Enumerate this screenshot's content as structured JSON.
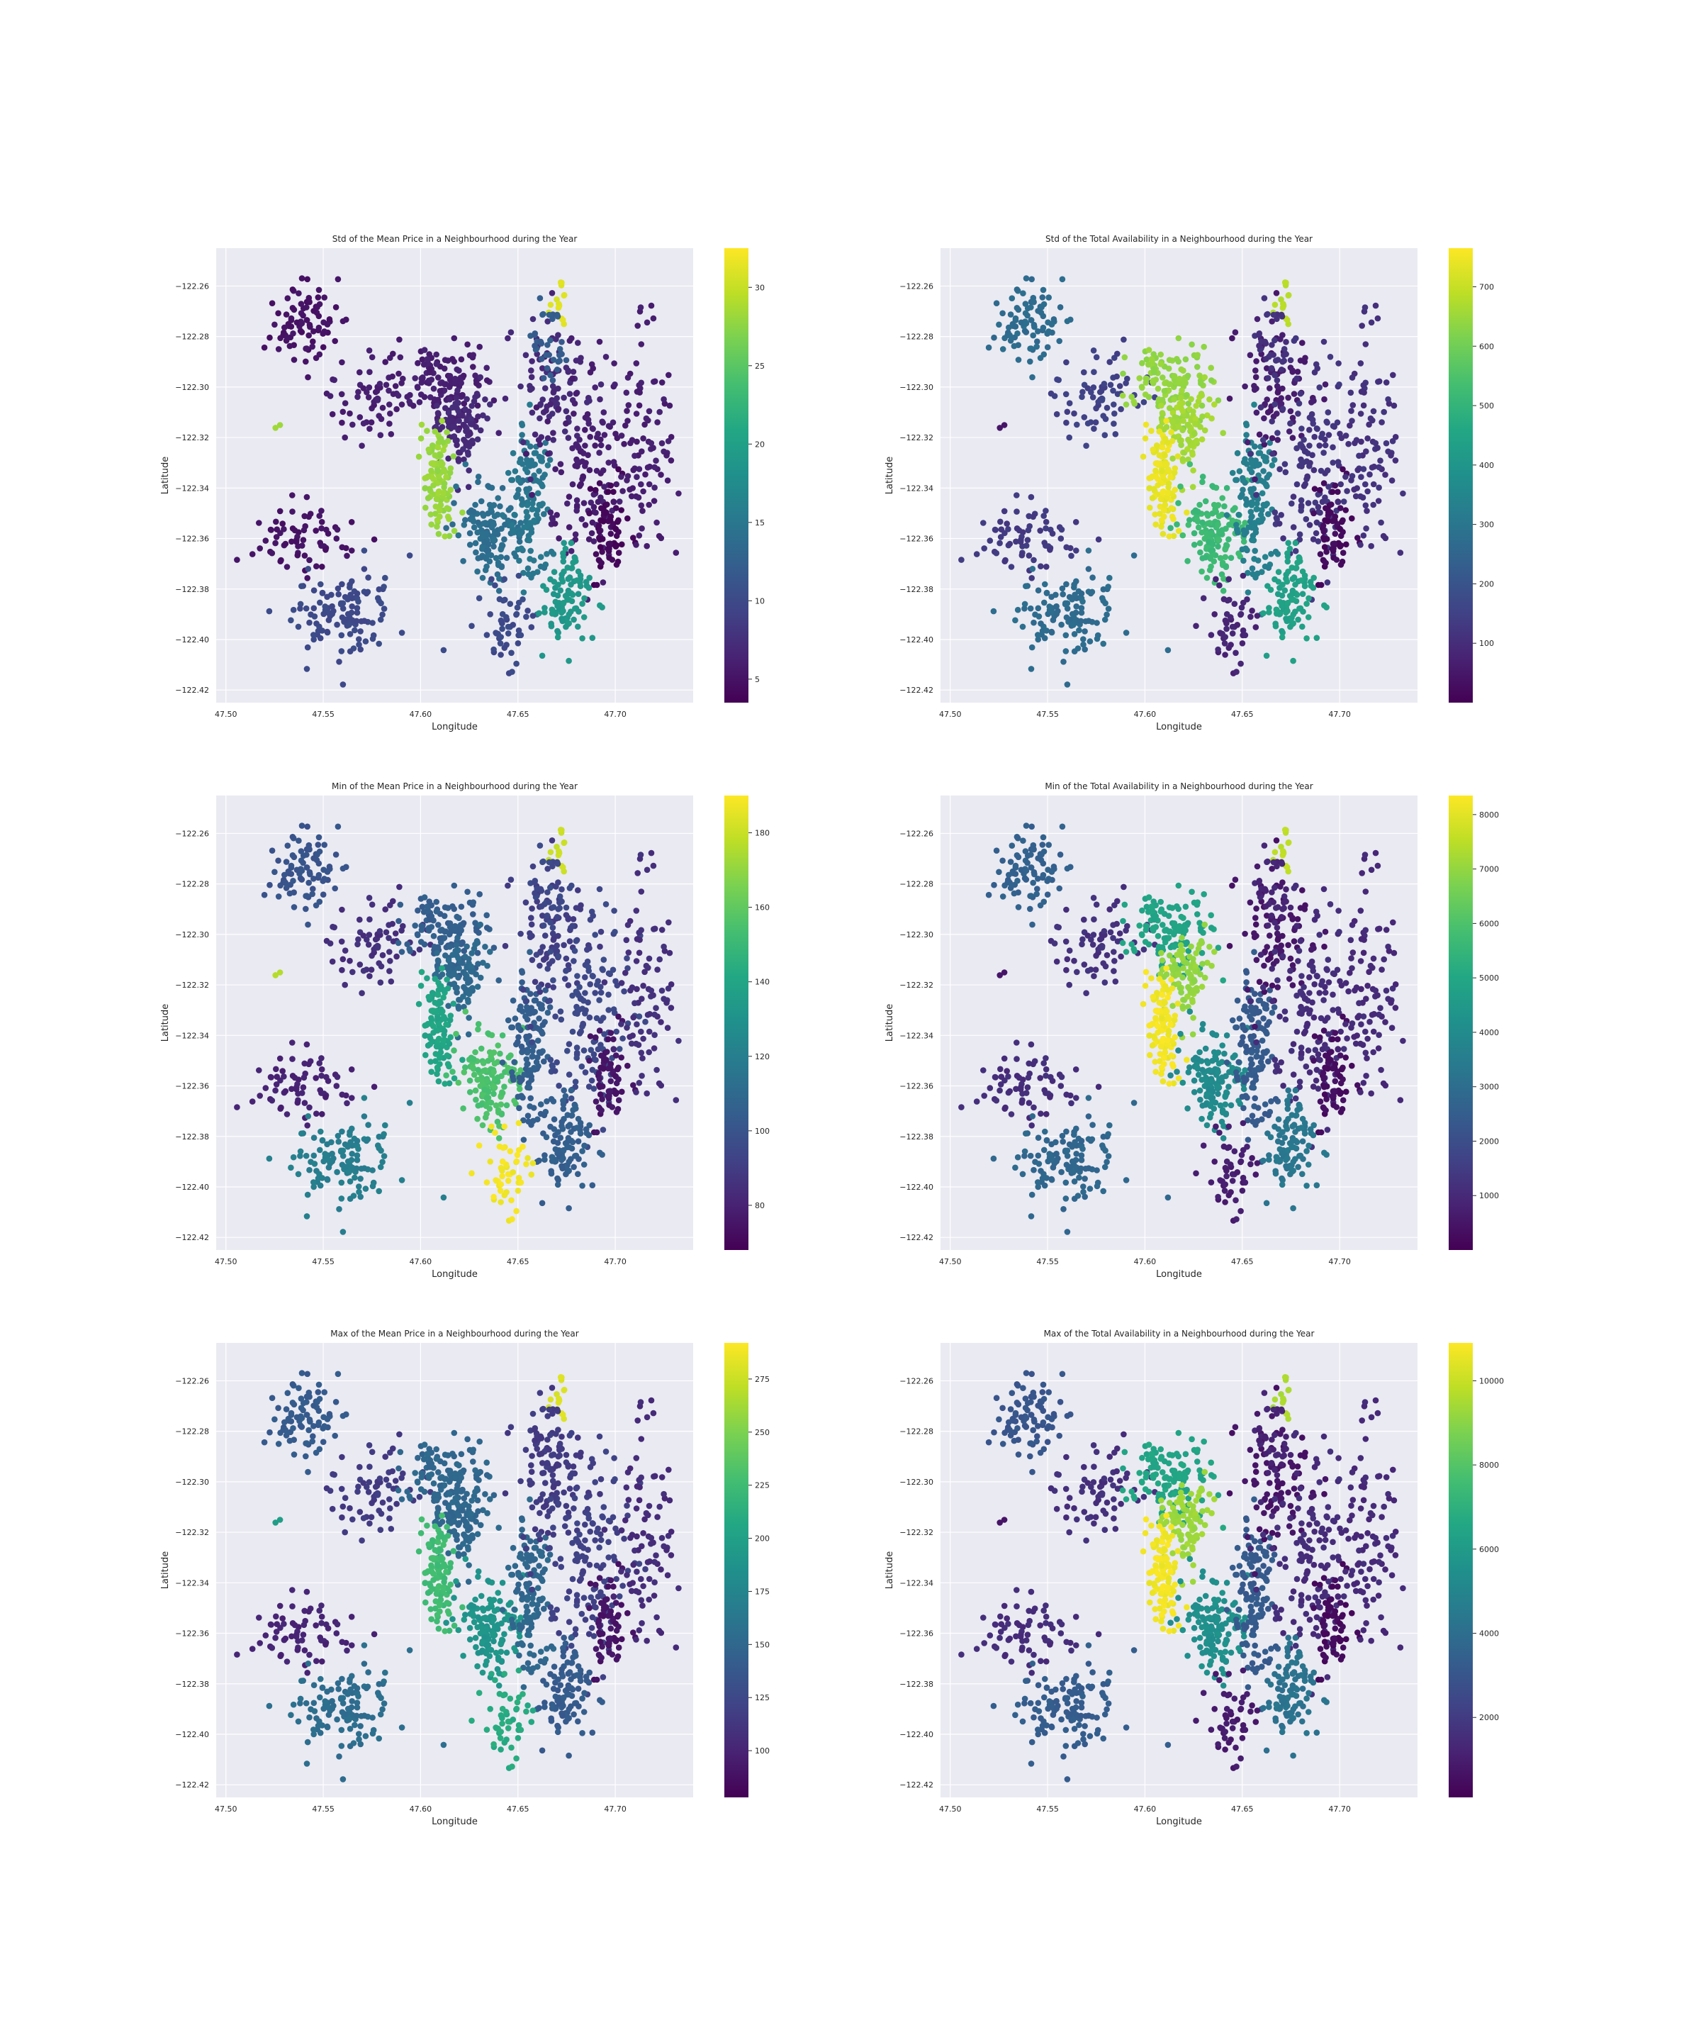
{
  "figure": {
    "background": "#ffffff",
    "axes_face": "#eaeaf2",
    "grid_color": "#ffffff",
    "colormap": "viridis"
  },
  "chart_data": [
    {
      "type": "scatter",
      "title": "Std of the Mean Price in a Neighbourhood during the Year",
      "xlabel": "Longitude",
      "ylabel": "Latitude",
      "xlim": [
        47.495,
        47.74
      ],
      "ylim": [
        -122.425,
        -122.245
      ],
      "y_inverted": true,
      "xticks": [
        "47.50",
        "47.55",
        "47.60",
        "47.65",
        "47.70"
      ],
      "yticks": [
        "−122.26",
        "−122.28",
        "−122.30",
        "−122.32",
        "−122.34",
        "−122.36",
        "−122.38",
        "−122.40",
        "−122.42"
      ],
      "grid": true,
      "colorbar": {
        "min": 3.5,
        "max": 32.5,
        "ticks": [
          "5",
          "10",
          "15",
          "20",
          "25",
          "30"
        ]
      },
      "metric": "price",
      "region_values": {
        "northwest": 5,
        "west_inner": 6,
        "north_central": 6,
        "central_upper": 7,
        "queen_anne_west": 28,
        "downtown": 14,
        "capitol": 15,
        "east_north": 7,
        "east_middle": 6,
        "east_deep": 4,
        "east_south": 19,
        "far_east": 6,
        "north_yellow": 31,
        "north_strip": 12,
        "south_pockets": 10,
        "southwest_upper": 5,
        "southwest_lower": 10,
        "west_stray": 28
      }
    },
    {
      "type": "scatter",
      "title": "Std of the Total Availability in a Neighbourhood during the Year",
      "xlabel": "Longitude",
      "ylabel": "Latitude",
      "xlim": [
        47.495,
        47.74
      ],
      "ylim": [
        -122.425,
        -122.245
      ],
      "y_inverted": true,
      "xticks": [
        "47.50",
        "47.55",
        "47.60",
        "47.65",
        "47.70"
      ],
      "yticks": [
        "−122.26",
        "−122.28",
        "−122.30",
        "−122.32",
        "−122.34",
        "−122.36",
        "−122.38",
        "−122.40",
        "−122.42"
      ],
      "grid": true,
      "colorbar": {
        "min": 0,
        "max": 765,
        "ticks": [
          "100",
          "200",
          "300",
          "400",
          "500",
          "600",
          "700"
        ]
      },
      "metric": "availability",
      "region_values": {
        "northwest": 270,
        "west_inner": 150,
        "north_central": 640,
        "central_upper": 660,
        "queen_anne_west": 740,
        "downtown": 520,
        "capitol": 330,
        "east_north": 60,
        "east_middle": 120,
        "east_deep": 20,
        "east_south": 440,
        "far_east": 110,
        "north_yellow": 680,
        "north_strip": 110,
        "south_pockets": 80,
        "southwest_upper": 130,
        "southwest_lower": 270,
        "west_stray": 40
      }
    },
    {
      "type": "scatter",
      "title": "Min of the Mean Price in a Neighbourhood during the Year",
      "xlabel": "Longitude",
      "ylabel": "Latitude",
      "xlim": [
        47.495,
        47.74
      ],
      "ylim": [
        -122.425,
        -122.245
      ],
      "y_inverted": true,
      "xticks": [
        "47.50",
        "47.55",
        "47.60",
        "47.65",
        "47.70"
      ],
      "yticks": [
        "−122.26",
        "−122.28",
        "−122.30",
        "−122.32",
        "−122.34",
        "−122.36",
        "−122.38",
        "−122.40",
        "−122.42"
      ],
      "grid": true,
      "colorbar": {
        "min": 68,
        "max": 190,
        "ticks": [
          "80",
          "100",
          "120",
          "140",
          "160",
          "180"
        ]
      },
      "metric": "price",
      "region_values": {
        "northwest": 100,
        "west_inner": 85,
        "north_central": 105,
        "central_upper": 110,
        "queen_anne_west": 140,
        "downtown": 155,
        "capitol": 105,
        "east_north": 90,
        "east_middle": 95,
        "east_deep": 75,
        "east_south": 105,
        "far_east": 85,
        "north_yellow": 180,
        "north_strip": 95,
        "south_pockets": 188,
        "southwest_upper": 80,
        "southwest_lower": 120,
        "west_stray": 175
      }
    },
    {
      "type": "scatter",
      "title": "Min of the Total Availability in a Neighbourhood during the Year",
      "xlabel": "Longitude",
      "ylabel": "Latitude",
      "xlim": [
        47.495,
        47.74
      ],
      "ylim": [
        -122.425,
        -122.245
      ],
      "y_inverted": true,
      "xticks": [
        "47.50",
        "47.55",
        "47.60",
        "47.65",
        "47.70"
      ],
      "yticks": [
        "−122.26",
        "−122.28",
        "−122.30",
        "−122.32",
        "−122.34",
        "−122.36",
        "−122.38",
        "−122.40",
        "−122.42"
      ],
      "grid": true,
      "colorbar": {
        "min": 0,
        "max": 8350,
        "ticks": [
          "1000",
          "2000",
          "3000",
          "4000",
          "5000",
          "6000",
          "7000",
          "8000"
        ]
      },
      "metric": "availability",
      "region_values": {
        "northwest": 2600,
        "west_inner": 1200,
        "north_central": 4900,
        "central_upper": 7000,
        "queen_anne_west": 8200,
        "downtown": 4000,
        "capitol": 2400,
        "east_north": 500,
        "east_middle": 1100,
        "east_deep": 300,
        "east_south": 3300,
        "far_east": 1000,
        "north_yellow": 7500,
        "north_strip": 900,
        "south_pockets": 700,
        "southwest_upper": 1100,
        "southwest_lower": 2800,
        "west_stray": 400
      }
    },
    {
      "type": "scatter",
      "title": "Max of the Mean Price in a Neighbourhood during the Year",
      "xlabel": "Longitude",
      "ylabel": "Latitude",
      "xlim": [
        47.495,
        47.74
      ],
      "ylim": [
        -122.425,
        -122.245
      ],
      "y_inverted": true,
      "xticks": [
        "47.50",
        "47.55",
        "47.60",
        "47.65",
        "47.70"
      ],
      "yticks": [
        "−122.26",
        "−122.28",
        "−122.30",
        "−122.32",
        "−122.34",
        "−122.36",
        "−122.38",
        "−122.40",
        "−122.42"
      ],
      "grid": true,
      "colorbar": {
        "min": 78,
        "max": 292,
        "ticks": [
          "100",
          "125",
          "150",
          "175",
          "200",
          "225",
          "250",
          "275"
        ]
      },
      "metric": "price",
      "region_values": {
        "northwest": 140,
        "west_inner": 115,
        "north_central": 150,
        "central_upper": 150,
        "queen_anne_west": 225,
        "downtown": 190,
        "capitol": 150,
        "east_north": 115,
        "east_middle": 120,
        "east_deep": 90,
        "east_south": 140,
        "far_east": 105,
        "north_yellow": 280,
        "north_strip": 115,
        "south_pockets": 210,
        "southwest_upper": 100,
        "southwest_lower": 155,
        "west_stray": 195
      }
    },
    {
      "type": "scatter",
      "title": "Max of the Total Availability in a Neighbourhood during the Year",
      "xlabel": "Longitude",
      "ylabel": "Latitude",
      "xlim": [
        47.495,
        47.74
      ],
      "ylim": [
        -122.425,
        -122.245
      ],
      "y_inverted": true,
      "xticks": [
        "47.50",
        "47.55",
        "47.60",
        "47.65",
        "47.70"
      ],
      "yticks": [
        "−122.26",
        "−122.28",
        "−122.30",
        "−122.32",
        "−122.34",
        "−122.36",
        "−122.38",
        "−122.40",
        "−122.42"
      ],
      "grid": true,
      "colorbar": {
        "min": 100,
        "max": 10900,
        "ticks": [
          "2000",
          "4000",
          "6000",
          "8000",
          "10000"
        ]
      },
      "metric": "availability",
      "region_values": {
        "northwest": 3000,
        "west_inner": 1600,
        "north_central": 6500,
        "central_upper": 9300,
        "queen_anne_west": 10700,
        "downtown": 5500,
        "capitol": 3200,
        "east_north": 700,
        "east_middle": 1500,
        "east_deep": 400,
        "east_south": 4200,
        "far_east": 1400,
        "north_yellow": 9500,
        "north_strip": 1200,
        "south_pockets": 900,
        "southwest_upper": 1500,
        "southwest_lower": 3300,
        "west_stray": 600
      }
    }
  ],
  "listings": {
    "regions": [
      {
        "id": "northwest",
        "cx": 47.54,
        "cy": -122.275,
        "sx": 0.012,
        "sy": 0.009,
        "n": 90,
        "rot": 0.7
      },
      {
        "id": "west_inner",
        "cx": 47.575,
        "cy": -122.305,
        "sx": 0.012,
        "sy": 0.009,
        "n": 70,
        "rot": 0.4
      },
      {
        "id": "north_central",
        "cx": 47.613,
        "cy": -122.297,
        "sx": 0.01,
        "sy": 0.009,
        "n": 120,
        "rot": 0
      },
      {
        "id": "central_upper",
        "cx": 47.622,
        "cy": -122.315,
        "sx": 0.006,
        "sy": 0.009,
        "n": 90,
        "rot": 0
      },
      {
        "id": "queen_anne_west",
        "cx": 47.609,
        "cy": -122.336,
        "sx": 0.004,
        "sy": 0.011,
        "n": 110,
        "rot": 0.3
      },
      {
        "id": "downtown",
        "cx": 47.637,
        "cy": -122.357,
        "sx": 0.008,
        "sy": 0.009,
        "n": 140,
        "rot": 0
      },
      {
        "id": "capitol",
        "cx": 47.657,
        "cy": -122.348,
        "sx": 0.006,
        "sy": 0.014,
        "n": 130,
        "rot": 0
      },
      {
        "id": "east_north",
        "cx": 47.667,
        "cy": -122.3,
        "sx": 0.01,
        "sy": 0.014,
        "n": 90,
        "rot": 0
      },
      {
        "id": "east_middle",
        "cx": 47.685,
        "cy": -122.33,
        "sx": 0.012,
        "sy": 0.02,
        "n": 150,
        "rot": 0
      },
      {
        "id": "east_deep",
        "cx": 47.697,
        "cy": -122.355,
        "sx": 0.005,
        "sy": 0.01,
        "n": 70,
        "rot": 0
      },
      {
        "id": "east_south",
        "cx": 47.675,
        "cy": -122.385,
        "sx": 0.006,
        "sy": 0.009,
        "n": 100,
        "rot": 0
      },
      {
        "id": "far_east",
        "cx": 47.718,
        "cy": -122.32,
        "sx": 0.008,
        "sy": 0.025,
        "n": 90,
        "rot": 0
      },
      {
        "id": "north_yellow",
        "cx": 47.671,
        "cy": -122.268,
        "sx": 0.002,
        "sy": 0.004,
        "n": 16,
        "rot": 0
      },
      {
        "id": "north_strip",
        "cx": 47.665,
        "cy": -122.283,
        "sx": 0.004,
        "sy": 0.008,
        "n": 35,
        "rot": 0
      },
      {
        "id": "south_pockets",
        "cx": 47.645,
        "cy": -122.395,
        "sx": 0.007,
        "sy": 0.008,
        "n": 50,
        "rot": 0
      },
      {
        "id": "southwest_upper",
        "cx": 47.54,
        "cy": -122.36,
        "sx": 0.014,
        "sy": 0.007,
        "n": 70,
        "rot": 0
      },
      {
        "id": "southwest_lower",
        "cx": 47.56,
        "cy": -122.39,
        "sx": 0.016,
        "sy": 0.01,
        "n": 120,
        "rot": 0.2
      },
      {
        "id": "west_stray",
        "cx": 47.527,
        "cy": -122.316,
        "sx": 0.001,
        "sy": 0.001,
        "n": 2,
        "rot": 0
      }
    ]
  }
}
